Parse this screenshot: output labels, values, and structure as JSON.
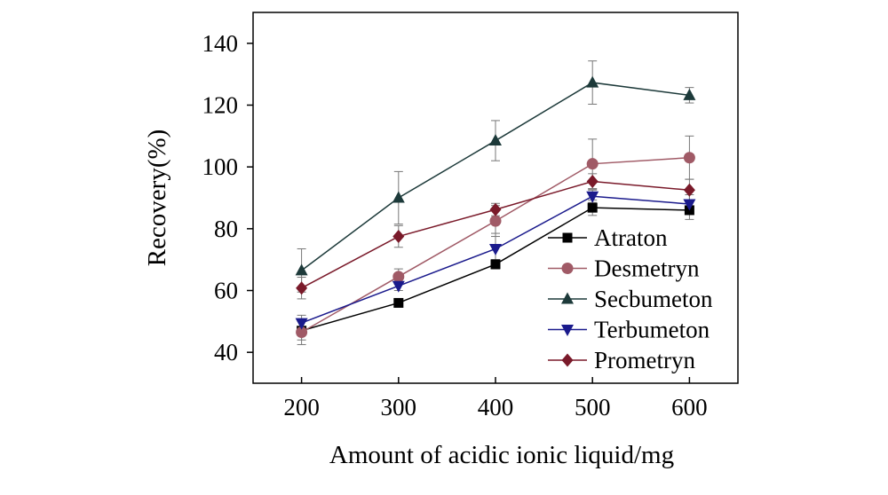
{
  "chart_data": {
    "type": "line",
    "title": "",
    "xlabel": "Amount of acidic ionic liquid/mg",
    "ylabel": "Recovery(%)",
    "x": [
      200,
      300,
      400,
      500,
      600
    ],
    "xlim": [
      150,
      650
    ],
    "ylim": [
      30,
      150
    ],
    "xticks": [
      200,
      300,
      400,
      500,
      600
    ],
    "yticks": [
      40,
      60,
      80,
      100,
      120,
      140
    ],
    "grid": false,
    "legend_position": "bottom-right",
    "series": [
      {
        "name": "Atraton",
        "marker": "square",
        "color": "#000000",
        "values": [
          47,
          56,
          68.5,
          86.8,
          86
        ],
        "errors": [
          3,
          1,
          1.5,
          2.5,
          3
        ]
      },
      {
        "name": "Desmetryn",
        "marker": "circle",
        "color": "#a05a66",
        "values": [
          46.5,
          64.5,
          82.5,
          101,
          103
        ],
        "errors": [
          4,
          2.5,
          5,
          8,
          7
        ]
      },
      {
        "name": "Secbumeton",
        "marker": "triangle-up",
        "color": "#1d3a3a",
        "values": [
          66.5,
          90,
          108.5,
          127.3,
          123.2
        ],
        "errors": [
          7,
          8.5,
          6.5,
          7,
          2.5
        ]
      },
      {
        "name": "Terbumeton",
        "marker": "triangle-down",
        "color": "#1a1a8c",
        "values": [
          49.5,
          61.5,
          73.5,
          90.5,
          88
        ],
        "errors": [
          2.5,
          1.5,
          5,
          2,
          3
        ]
      },
      {
        "name": "Prometryn",
        "marker": "diamond",
        "color": "#7a1a2a",
        "values": [
          60.8,
          77.5,
          86.2,
          95.3,
          92.5
        ],
        "errors": [
          3.5,
          3.5,
          2,
          2.5,
          3.5
        ]
      }
    ]
  }
}
